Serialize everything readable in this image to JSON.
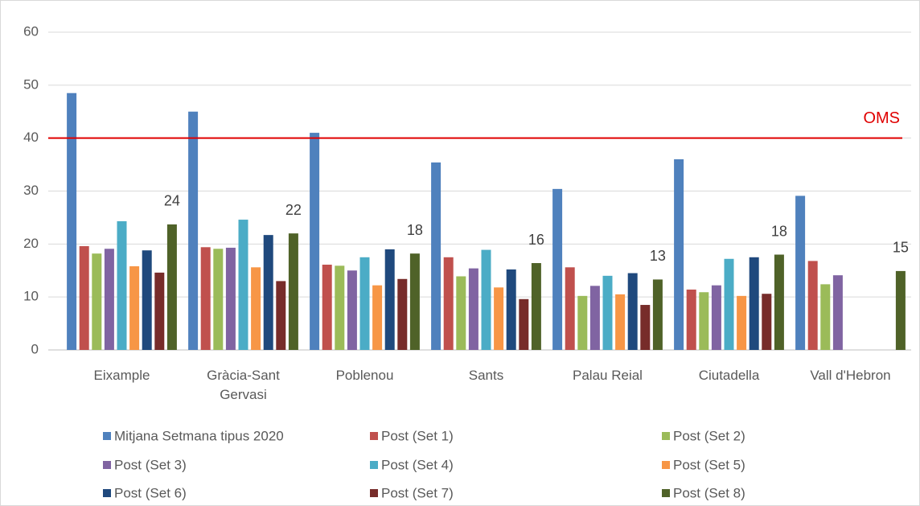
{
  "chart_data": {
    "type": "bar",
    "categories": [
      "Eixample",
      "Gràcia-Sant Gervasi",
      "Poblenou",
      "Sants",
      "Palau Reial",
      "Ciutadella",
      "Vall d'Hebron"
    ],
    "series": [
      {
        "name": "Mitjana Setmana tipus 2020",
        "color": "#4f81bd",
        "values": [
          48.5,
          45,
          41,
          35.4,
          30.4,
          36,
          29.1
        ]
      },
      {
        "name": "Post (Set 1)",
        "color": "#c0504d",
        "values": [
          19.6,
          19.4,
          16.1,
          17.5,
          15.6,
          11.4,
          16.8
        ]
      },
      {
        "name": "Post (Set 2)",
        "color": "#9bbb59",
        "values": [
          18.2,
          19.1,
          15.9,
          13.9,
          10.2,
          10.9,
          12.4
        ]
      },
      {
        "name": "Post (Set 3)",
        "color": "#8064a2",
        "values": [
          19.1,
          19.3,
          15.0,
          15.4,
          12.1,
          12.2,
          14.1
        ]
      },
      {
        "name": "Post (Set 4)",
        "color": "#4bacc6",
        "values": [
          24.3,
          24.6,
          17.5,
          18.9,
          14.0,
          17.2,
          null
        ]
      },
      {
        "name": "Post (Set 5)",
        "color": "#f79646",
        "values": [
          15.8,
          15.6,
          12.2,
          11.8,
          10.5,
          10.2,
          null
        ]
      },
      {
        "name": "Post (Set 6)",
        "color": "#1f497d",
        "values": [
          18.8,
          21.7,
          19.0,
          15.2,
          14.5,
          17.5,
          null
        ]
      },
      {
        "name": "Post (Set 7)",
        "color": "#772c2a",
        "values": [
          14.6,
          13.0,
          13.4,
          9.6,
          8.5,
          10.6,
          null
        ]
      },
      {
        "name": "Post (Set 8)",
        "color": "#4f6228",
        "values": [
          23.7,
          22.0,
          18.2,
          16.4,
          13.3,
          18.0,
          14.9
        ],
        "value_labels": [
          "24",
          "22",
          "18",
          "16",
          "13",
          "18",
          "15"
        ]
      }
    ],
    "ylim": [
      0,
      60
    ],
    "yticks": [
      0,
      10,
      20,
      30,
      40,
      50,
      60
    ],
    "grid": true,
    "reference_line": {
      "value": 40,
      "label": "OMS",
      "color": "#e00000"
    },
    "legend": "bottom"
  }
}
